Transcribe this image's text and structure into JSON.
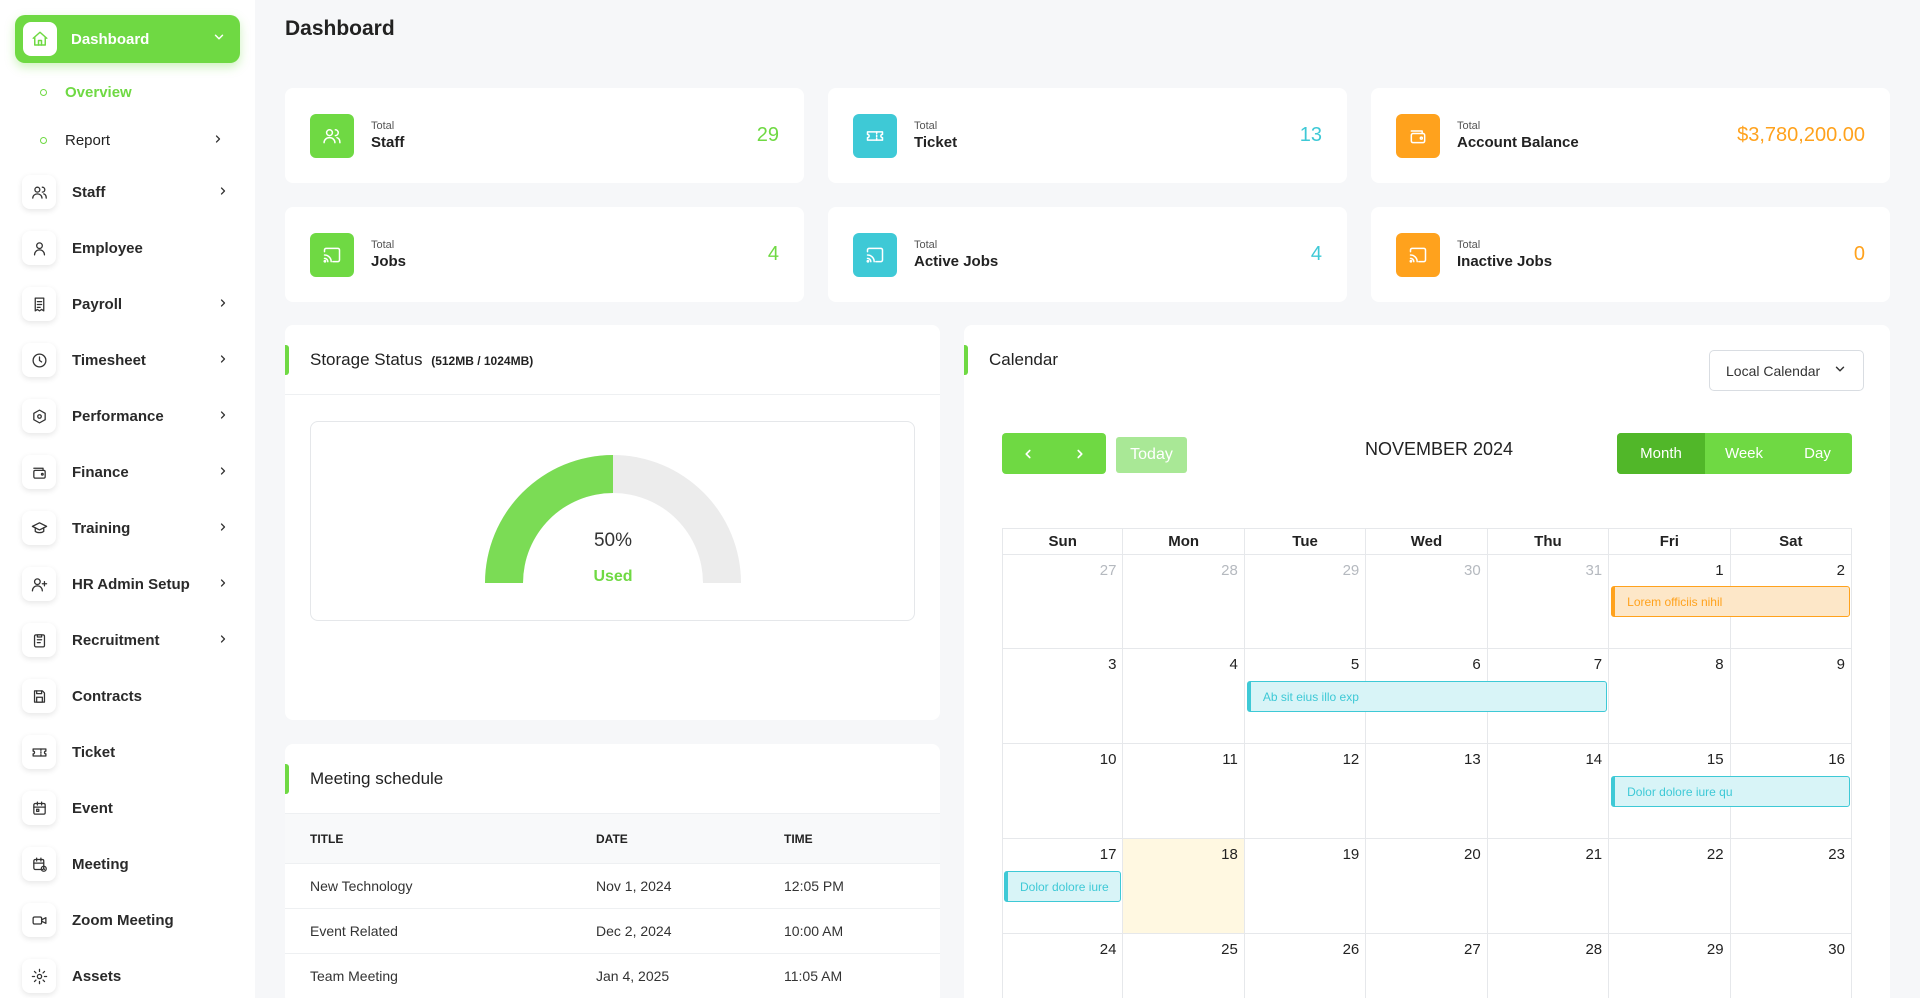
{
  "sidebar": {
    "active": {
      "label": "Dashboard",
      "icon": "home-icon"
    },
    "subitems": [
      {
        "label": "Overview",
        "active": true
      },
      {
        "label": "Report",
        "active": false
      }
    ],
    "items": [
      {
        "label": "Staff",
        "icon": "users-icon",
        "chevron": true
      },
      {
        "label": "Employee",
        "icon": "user-icon",
        "chevron": false
      },
      {
        "label": "Payroll",
        "icon": "receipt-icon",
        "chevron": true
      },
      {
        "label": "Timesheet",
        "icon": "clock-icon",
        "chevron": true
      },
      {
        "label": "Performance",
        "icon": "hexagon-icon",
        "chevron": true
      },
      {
        "label": "Finance",
        "icon": "wallet-icon",
        "chevron": true
      },
      {
        "label": "Training",
        "icon": "graduation-cap-icon",
        "chevron": true
      },
      {
        "label": "HR Admin Setup",
        "icon": "user-plus-icon",
        "chevron": true
      },
      {
        "label": "Recruitment",
        "icon": "clipboard-icon",
        "chevron": true
      },
      {
        "label": "Contracts",
        "icon": "device-floppy-icon",
        "chevron": false
      },
      {
        "label": "Ticket",
        "icon": "ticket-icon",
        "chevron": false
      },
      {
        "label": "Event",
        "icon": "calendar-icon",
        "chevron": false
      },
      {
        "label": "Meeting",
        "icon": "calendar-time-icon",
        "chevron": false
      },
      {
        "label": "Zoom Meeting",
        "icon": "video-icon",
        "chevron": false
      },
      {
        "label": "Assets",
        "icon": "gear-icon",
        "chevron": false
      }
    ]
  },
  "header": {
    "title": "Dashboard"
  },
  "stats": [
    {
      "small": "Total",
      "label": "Staff",
      "value": "29",
      "color": "#6fd943",
      "icon": "users-icon"
    },
    {
      "small": "Total",
      "label": "Ticket",
      "value": "13",
      "color": "#3ec9d6",
      "icon": "ticket-icon"
    },
    {
      "small": "Total",
      "label": "Account Balance",
      "value": "$3,780,200.00",
      "color": "#ffa21d",
      "icon": "wallet-icon"
    },
    {
      "small": "Total",
      "label": "Jobs",
      "value": "4",
      "color": "#6fd943",
      "icon": "cast-icon"
    },
    {
      "small": "Total",
      "label": "Active Jobs",
      "value": "4",
      "color": "#3ec9d6",
      "icon": "cast-icon"
    },
    {
      "small": "Total",
      "label": "Inactive Jobs",
      "value": "0",
      "color": "#ffa21d",
      "icon": "cast-icon"
    }
  ],
  "storage": {
    "title": "Storage Status",
    "subtitle": "(512MB / 1024MB)",
    "percent_label": "50%",
    "used_label": "Used",
    "used_fraction": 0.5
  },
  "meeting": {
    "title": "Meeting schedule",
    "columns": [
      "TITLE",
      "DATE",
      "TIME"
    ],
    "rows": [
      {
        "title": "New Technology",
        "date": "Nov 1, 2024",
        "time": "12:05 PM"
      },
      {
        "title": "Event Related",
        "date": "Dec 2, 2024",
        "time": "10:00 AM"
      },
      {
        "title": "Team Meeting",
        "date": "Jan 4, 2025",
        "time": "11:05 AM"
      }
    ]
  },
  "calendar": {
    "title": "Calendar",
    "select_value": "Local Calendar",
    "month_label": "NOVEMBER 2024",
    "today_label": "Today",
    "views": [
      {
        "label": "Month",
        "active": true
      },
      {
        "label": "Week",
        "active": false
      },
      {
        "label": "Day",
        "active": false
      }
    ],
    "weekdays": [
      "Sun",
      "Mon",
      "Tue",
      "Wed",
      "Thu",
      "Fri",
      "Sat"
    ],
    "weeks": [
      [
        {
          "d": "27",
          "m": true
        },
        {
          "d": "28",
          "m": true
        },
        {
          "d": "29",
          "m": true
        },
        {
          "d": "30",
          "m": true
        },
        {
          "d": "31",
          "m": true
        },
        {
          "d": "1"
        },
        {
          "d": "2"
        }
      ],
      [
        {
          "d": "3"
        },
        {
          "d": "4"
        },
        {
          "d": "5"
        },
        {
          "d": "6"
        },
        {
          "d": "7"
        },
        {
          "d": "8"
        },
        {
          "d": "9"
        }
      ],
      [
        {
          "d": "10"
        },
        {
          "d": "11"
        },
        {
          "d": "12"
        },
        {
          "d": "13"
        },
        {
          "d": "14"
        },
        {
          "d": "15"
        },
        {
          "d": "16"
        }
      ],
      [
        {
          "d": "17"
        },
        {
          "d": "18",
          "today": true
        },
        {
          "d": "19"
        },
        {
          "d": "20"
        },
        {
          "d": "21"
        },
        {
          "d": "22"
        },
        {
          "d": "23"
        }
      ],
      [
        {
          "d": "24"
        },
        {
          "d": "25"
        },
        {
          "d": "26"
        },
        {
          "d": "27"
        },
        {
          "d": "28"
        },
        {
          "d": "29"
        },
        {
          "d": "30"
        }
      ]
    ],
    "events": [
      {
        "title": "Lorem officiis nihil",
        "week": 0,
        "start_day": 5,
        "end_day": 6,
        "color": "orange"
      },
      {
        "title": "Ab sit eius illo exp",
        "week": 1,
        "start_day": 2,
        "end_day": 4,
        "color": "cyan"
      },
      {
        "title": "Dolor dolore iure qu",
        "week": 2,
        "start_day": 5,
        "end_day": 6,
        "color": "cyan"
      },
      {
        "title": "Dolor dolore iure",
        "week": 3,
        "start_day": 0,
        "end_day": 0,
        "color": "cyan"
      }
    ]
  }
}
